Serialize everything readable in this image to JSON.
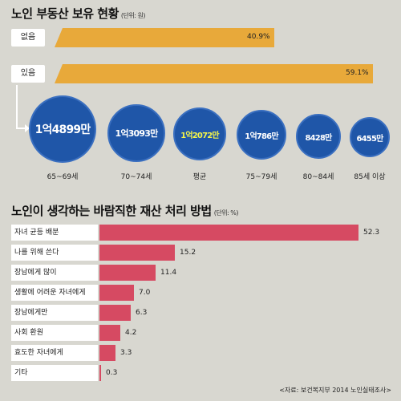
{
  "section1": {
    "title": "노인 부동산 보유 현황",
    "unit": "(단위: 원)",
    "bars": [
      {
        "label": "없음",
        "value": 40.9,
        "display": "40.9%"
      },
      {
        "label": "있음",
        "value": 59.1,
        "display": "59.1%"
      }
    ],
    "circles": [
      {
        "amount": "1억4899만",
        "age": "65~69세",
        "highlight": false
      },
      {
        "amount": "1억3093만",
        "age": "70~74세",
        "highlight": false
      },
      {
        "amount": "1억2072만",
        "age": "평균",
        "highlight": true
      },
      {
        "amount": "1억786만",
        "age": "75~79세",
        "highlight": false
      },
      {
        "amount": "8428만",
        "age": "80~84세",
        "highlight": false
      },
      {
        "amount": "6455만",
        "age": "85세 이상",
        "highlight": false
      }
    ]
  },
  "section2": {
    "title": "노인이 생각하는 바람직한 재산 처리 방법",
    "unit": "(단위: %)"
  },
  "chart_data": [
    {
      "type": "bar",
      "title": "노인 부동산 보유 현황",
      "categories": [
        "없음",
        "있음"
      ],
      "values": [
        40.9,
        59.1
      ]
    },
    {
      "type": "bar",
      "title": "노인이 생각하는 바람직한 재산 처리 방법",
      "categories": [
        "자녀 균등 배분",
        "나를 위해 쓴다",
        "장남에게 많이",
        "생활에 어려운 자녀에게",
        "장남에게만",
        "사회 환원",
        "효도한 자녀에게",
        "기타"
      ],
      "values": [
        52.3,
        15.2,
        11.4,
        7.0,
        6.3,
        4.2,
        3.3,
        0.3
      ],
      "display": [
        "52.3",
        "15.2",
        "11.4",
        "7.0",
        "6.3",
        "4.2",
        "3.3",
        "0.3"
      ]
    }
  ],
  "source": "<자료: 보건복지부 2014 노인실태조사>"
}
